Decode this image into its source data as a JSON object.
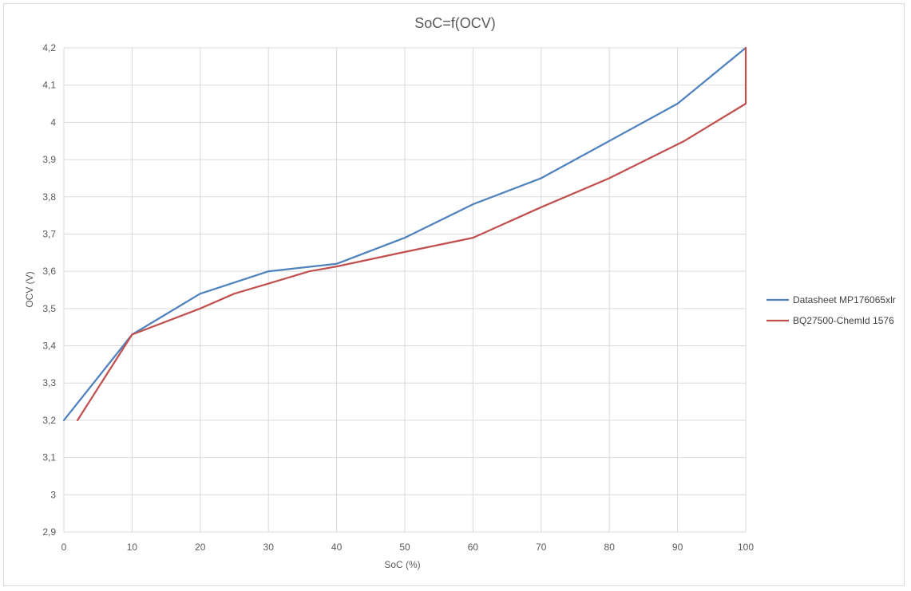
{
  "chart_data": {
    "type": "line",
    "title": "SoC=f(OCV)",
    "xlabel": "SoC (%)",
    "ylabel": "OCV (V)",
    "xlim": [
      0,
      100
    ],
    "ylim": [
      2.9,
      4.2
    ],
    "x_ticks": [
      "0",
      "10",
      "20",
      "30",
      "40",
      "50",
      "60",
      "70",
      "80",
      "90",
      "100"
    ],
    "y_ticks": [
      "2,9",
      "3",
      "3,1",
      "3,2",
      "3,3",
      "3,4",
      "3,5",
      "3,6",
      "3,7",
      "3,8",
      "3,9",
      "4",
      "4,1",
      "4,2"
    ],
    "grid": true,
    "legend_position": "right",
    "series": [
      {
        "name": "Datasheet MP176065xlr",
        "color": "#4f81bd",
        "points": [
          [
            0,
            3.2
          ],
          [
            10,
            3.43
          ],
          [
            20,
            3.54
          ],
          [
            30,
            3.6
          ],
          [
            40,
            3.62
          ],
          [
            50,
            3.69
          ],
          [
            60,
            3.78
          ],
          [
            70,
            3.85
          ],
          [
            80,
            3.95
          ],
          [
            90,
            4.05
          ],
          [
            100,
            4.2
          ]
        ]
      },
      {
        "name": "BQ27500-ChemId 1576",
        "color": "#c0504d",
        "points": [
          [
            2,
            3.2
          ],
          [
            10,
            3.43
          ],
          [
            20,
            3.5
          ],
          [
            25,
            3.54
          ],
          [
            30,
            3.567
          ],
          [
            36,
            3.6
          ],
          [
            40,
            3.613
          ],
          [
            50,
            3.652
          ],
          [
            60,
            3.69
          ],
          [
            70,
            3.772
          ],
          [
            80,
            3.85
          ],
          [
            91,
            3.95
          ],
          [
            100,
            4.05
          ],
          [
            100,
            4.2
          ]
        ]
      }
    ]
  }
}
